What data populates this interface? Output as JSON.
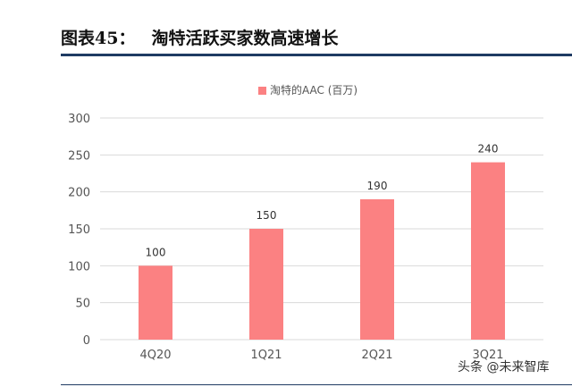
{
  "header": {
    "figure_label": "图表45：",
    "title": "淘特活跃买家数高速增长"
  },
  "chart_data": {
    "type": "bar",
    "categories": [
      "4Q20",
      "1Q21",
      "2Q21",
      "3Q21"
    ],
    "series": [
      {
        "name": "淘特的AAC (百万)",
        "values": [
          100,
          150,
          190,
          240
        ]
      }
    ],
    "ylim": [
      0,
      300
    ],
    "yticks": [
      0,
      50,
      100,
      150,
      200,
      250,
      300
    ],
    "grid": true,
    "legend_position": "top-center",
    "bar_color": "#fb8182"
  },
  "watermark": "头条 @未来智库"
}
